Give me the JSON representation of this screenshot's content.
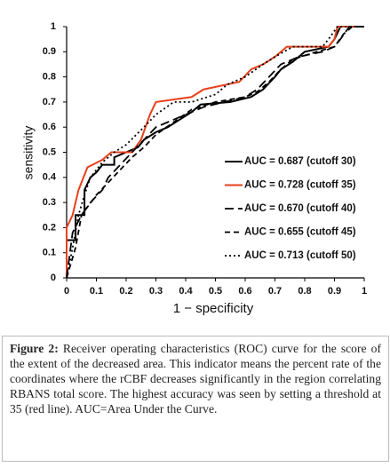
{
  "chart_data": {
    "type": "line",
    "ylabel": "sensitivity",
    "xlabel": "1 − specificity",
    "xlim": [
      0,
      1
    ],
    "ylim": [
      0,
      1
    ],
    "xticks": [
      0,
      0.1,
      0.2,
      0.3,
      0.4,
      0.5,
      0.6,
      0.7,
      0.8,
      0.9,
      1
    ],
    "yticks": [
      0,
      0.1,
      0.2,
      0.3,
      0.4,
      0.5,
      0.6,
      0.7,
      0.8,
      0.9,
      1
    ],
    "grid": false,
    "legend": "right",
    "series": [
      {
        "name": "AUC = 0.687 (cutoff 30)",
        "color": "#000000",
        "dash": "none",
        "width": 2,
        "x": [
          0,
          0,
          0.03,
          0.03,
          0.06,
          0.06,
          0.08,
          0.1,
          0.12,
          0.16,
          0.16,
          0.2,
          0.24,
          0.26,
          0.3,
          0.34,
          0.38,
          0.42,
          0.45,
          0.55,
          0.62,
          0.66,
          0.7,
          0.72,
          0.76,
          0.8,
          0.88,
          0.9,
          0.92,
          1
        ],
        "values": [
          0,
          0.15,
          0.15,
          0.25,
          0.25,
          0.35,
          0.4,
          0.42,
          0.45,
          0.45,
          0.48,
          0.5,
          0.52,
          0.55,
          0.58,
          0.6,
          0.63,
          0.66,
          0.69,
          0.7,
          0.72,
          0.75,
          0.8,
          0.83,
          0.86,
          0.9,
          0.92,
          0.95,
          1,
          1
        ]
      },
      {
        "name": "AUC = 0.728 (cutoff 35)",
        "color": "#e8401c",
        "dash": "none",
        "width": 2,
        "x": [
          0,
          0,
          0.02,
          0.04,
          0.07,
          0.12,
          0.15,
          0.22,
          0.25,
          0.28,
          0.3,
          0.42,
          0.46,
          0.58,
          0.62,
          0.66,
          0.7,
          0.74,
          0.88,
          0.9,
          0.91,
          1
        ],
        "values": [
          0,
          0.2,
          0.25,
          0.35,
          0.44,
          0.47,
          0.5,
          0.5,
          0.55,
          0.65,
          0.7,
          0.72,
          0.75,
          0.78,
          0.83,
          0.85,
          0.88,
          0.92,
          0.92,
          0.95,
          1,
          1
        ]
      },
      {
        "name": "AUC = 0.670 (cutoff 40)",
        "color": "#000000",
        "dash": "10 5",
        "width": 1.8,
        "x": [
          0,
          0.02,
          0.05,
          0.08,
          0.12,
          0.14,
          0.18,
          0.22,
          0.26,
          0.3,
          0.36,
          0.42,
          0.46,
          0.6,
          0.64,
          0.68,
          0.72,
          0.78,
          0.86,
          0.9,
          0.92,
          0.95,
          1
        ],
        "values": [
          0,
          0.18,
          0.25,
          0.3,
          0.35,
          0.4,
          0.45,
          0.5,
          0.55,
          0.6,
          0.63,
          0.66,
          0.68,
          0.72,
          0.75,
          0.8,
          0.85,
          0.88,
          0.9,
          0.92,
          0.95,
          1,
          1
        ]
      },
      {
        "name": "AUC = 0.655 (cutoff 45)",
        "color": "#000000",
        "dash": "6 4",
        "width": 1.8,
        "x": [
          0,
          0.03,
          0.05,
          0.1,
          0.14,
          0.18,
          0.22,
          0.26,
          0.3,
          0.36,
          0.42,
          0.5,
          0.6,
          0.64,
          0.68,
          0.72,
          0.76,
          0.84,
          0.9,
          0.93,
          0.96,
          1
        ],
        "values": [
          0,
          0.12,
          0.25,
          0.33,
          0.38,
          0.43,
          0.48,
          0.52,
          0.57,
          0.62,
          0.67,
          0.7,
          0.72,
          0.74,
          0.78,
          0.83,
          0.87,
          0.9,
          0.92,
          0.97,
          1,
          1
        ]
      },
      {
        "name": "AUC = 0.713 (cutoff 50)",
        "color": "#000000",
        "dash": "2 3",
        "width": 1.8,
        "x": [
          0,
          0.02,
          0.04,
          0.06,
          0.08,
          0.12,
          0.16,
          0.2,
          0.26,
          0.3,
          0.36,
          0.42,
          0.5,
          0.54,
          0.6,
          0.66,
          0.7,
          0.76,
          0.86,
          0.88,
          0.91,
          1
        ],
        "values": [
          0,
          0.12,
          0.25,
          0.33,
          0.4,
          0.46,
          0.5,
          0.53,
          0.6,
          0.65,
          0.7,
          0.7,
          0.73,
          0.77,
          0.8,
          0.85,
          0.88,
          0.92,
          0.92,
          0.95,
          1,
          1
        ]
      }
    ]
  },
  "caption": {
    "label": "Figure 2:",
    "text": "Receiver operating characteristics (ROC) curve for the score of the extent of the decreased area. This indicator means the percent rate of the coordinates where the rCBF decreases significantly in the region correlating RBANS total score. The highest accuracy was seen by setting a threshold at 35 (red line). AUC=Area Under the Curve."
  }
}
